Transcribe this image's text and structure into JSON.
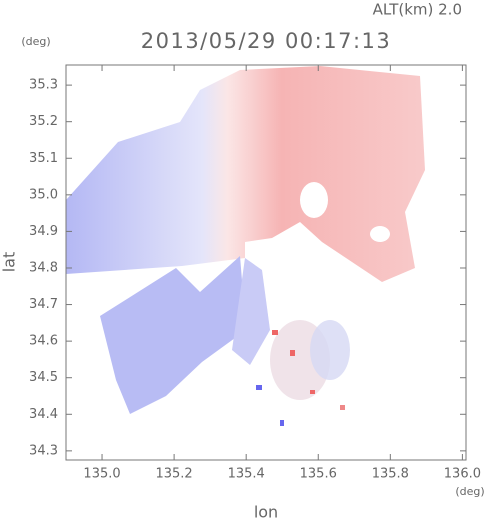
{
  "chart_data": {
    "type": "map",
    "title": "2013/05/29 00:17:13",
    "subtitle": "ALT(km) 2.0",
    "y_unit": "(deg)",
    "x_unit": "(deg)",
    "xlabel": "lon",
    "ylabel": "lat",
    "xlim": [
      134.9,
      136.01
    ],
    "ylim": [
      34.275,
      35.355
    ],
    "xticks": [
      {
        "value": 135.0,
        "label": "135.0"
      },
      135.2,
      135.4,
      135.6,
      135.8,
      {
        "value": 136.0,
        "label": "136.0"
      }
    ],
    "yticks": [
      34.3,
      34.4,
      34.5,
      34.6,
      34.7,
      34.8,
      34.9,
      {
        "value": 35.0,
        "label": "35.0"
      },
      35.1,
      35.2,
      35.3
    ]
  }
}
